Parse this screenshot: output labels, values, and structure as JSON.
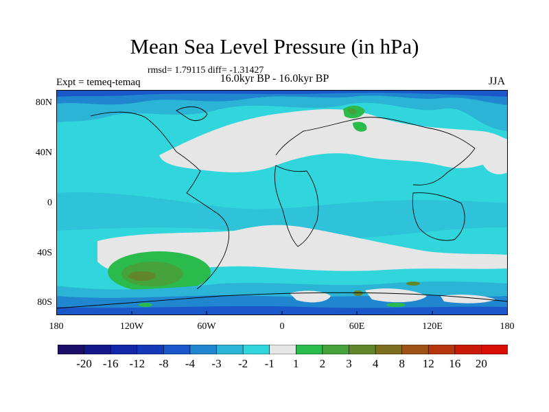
{
  "title": "Mean Sea Level Pressure (in hPa)",
  "stats": "rmsd= 1.79115 diff= -1.31427",
  "expt": "Expt = temeq-temaq",
  "period": "16.0kyr BP - 16.0kyr BP",
  "season": "JJA",
  "axes": {
    "y_ticks": [
      "80N",
      "40N",
      "0",
      "40S",
      "80S"
    ],
    "y_values": [
      80,
      40,
      0,
      -40,
      -80
    ],
    "x_ticks": [
      "180",
      "120W",
      "60W",
      "0",
      "60E",
      "120E",
      "180"
    ],
    "x_values": [
      -180,
      -120,
      -60,
      0,
      60,
      120,
      180
    ],
    "lon_range": [
      -180,
      180
    ],
    "lat_range": [
      -90,
      90
    ]
  },
  "colorbar": {
    "labels": [
      "-20",
      "-16",
      "-12",
      "-8",
      "-4",
      "-3",
      "-2",
      "-1",
      "1",
      "2",
      "3",
      "4",
      "8",
      "12",
      "16",
      "20"
    ],
    "colors": [
      "#1b0f6b",
      "#15178c",
      "#1226a8",
      "#1339b8",
      "#1a57c8",
      "#1f86cf",
      "#2bb4d6",
      "#31d6dc",
      "#e6e6e6",
      "#2bbb4d",
      "#46a23a",
      "#62862a",
      "#7d6d1e",
      "#9e5214",
      "#b5360c",
      "#c81a07",
      "#d80d04"
    ]
  },
  "colors": {
    "background_neg": "#31d6dc",
    "neutral": "#e6e6e6",
    "coast": "#000000"
  }
}
